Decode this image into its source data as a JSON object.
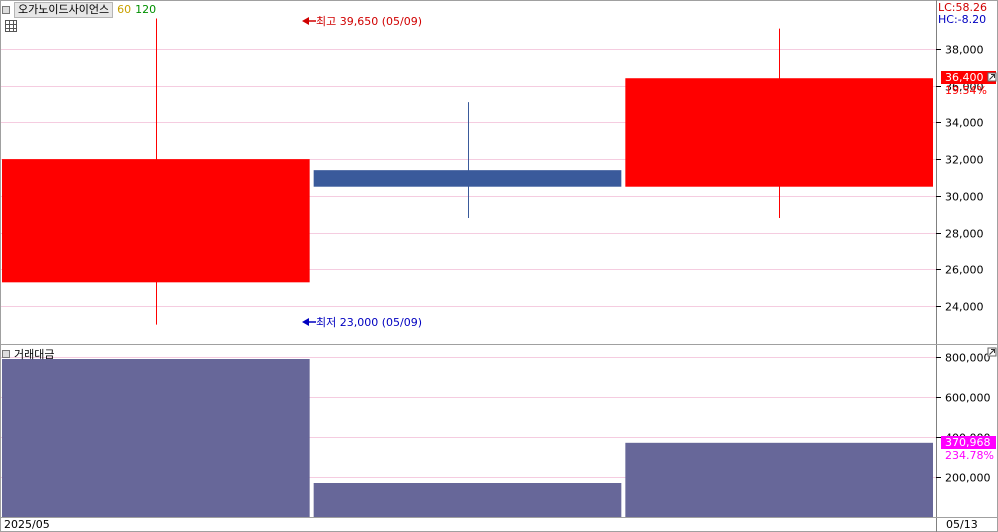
{
  "legend": {
    "stock_name": "오가노이드사이언스",
    "ma_short": "60",
    "ma_long": "120"
  },
  "indicators": {
    "lc": "LC:58.26",
    "hc": "HC:-8.20"
  },
  "annotations": {
    "high": {
      "label": "최고 39,650 (05/09)",
      "price": 39650
    },
    "low": {
      "label": "최저 23,000 (05/09)",
      "price": 23000
    }
  },
  "current_price": {
    "label": "36,400",
    "pct": "19.54%"
  },
  "volume_panel": {
    "title": "거래대금",
    "current_label": "370,968",
    "current_pct": "234.78%"
  },
  "x_axis": {
    "start_label": "2025/05",
    "end_label": "05/13"
  },
  "colors": {
    "up": "#ff0000",
    "down": "#3a5a9b",
    "volume": "#676799",
    "grid": "#f5cce0",
    "highlight": "#ff00ff"
  },
  "chart_data": [
    {
      "type": "candlestick",
      "title": "오가노이드사이언스",
      "ylim": [
        22000,
        40600
      ],
      "yticks": [
        24000,
        26000,
        28000,
        30000,
        32000,
        34000,
        36000,
        38000
      ],
      "ytick_labels": [
        "24,000",
        "26,000",
        "28,000",
        "30,000",
        "32,000",
        "34,000",
        "36,000",
        "38,000"
      ],
      "candles": [
        {
          "open": 25300,
          "close": 32000,
          "high": 39650,
          "low": 23000
        },
        {
          "open": 31400,
          "close": 30500,
          "high": 35100,
          "low": 28800
        },
        {
          "open": 30500,
          "close": 36400,
          "high": 39100,
          "low": 28800
        }
      ]
    },
    {
      "type": "bar",
      "title": "거래대금",
      "ylim": [
        0,
        860000
      ],
      "yticks": [
        200000,
        400000,
        600000,
        800000
      ],
      "ytick_labels": [
        "200,000",
        "400,000",
        "600,000",
        "800,000"
      ],
      "values": [
        790000,
        170000,
        370968
      ]
    }
  ]
}
